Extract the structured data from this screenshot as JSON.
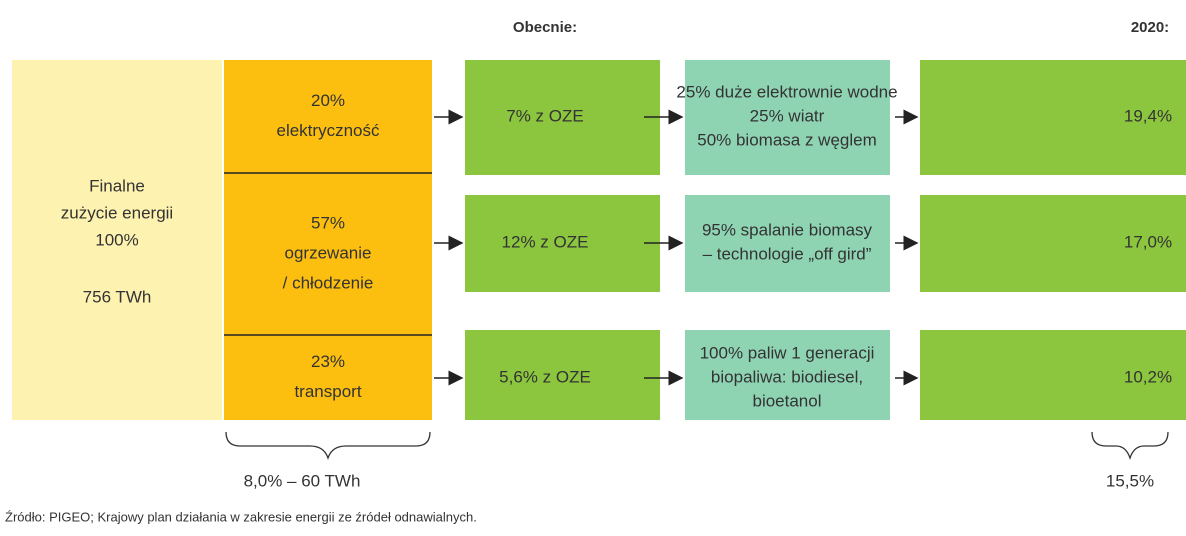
{
  "header": {
    "current": "Obecnie:",
    "target": "2020:"
  },
  "total": {
    "lines": [
      "Finalne",
      "zużycie energii",
      "100%"
    ],
    "amount": "756 TWh"
  },
  "rows": [
    {
      "share": "20%",
      "sector": [
        "elektryczność"
      ],
      "current": "7% z OZE",
      "sources": [
        "25% duże elektrownie wodne",
        "25% wiatr",
        "50% biomasa z węglem"
      ],
      "target": "19,4%"
    },
    {
      "share": "57%",
      "sector": [
        "ogrzewanie",
        "/ chłodzenie"
      ],
      "current": "12% z OZE",
      "sources": [
        "95% spalanie biomasy",
        "– technologie „off gird”"
      ],
      "target": "17,0%"
    },
    {
      "share": "23%",
      "sector": [
        "transport"
      ],
      "current": "5,6% z OZE",
      "sources": [
        "100% paliw 1 generacji",
        "biopaliwa: biodiesel,",
        "bioetanol"
      ],
      "target": "10,2%"
    }
  ],
  "brace_left": "8,0% – 60 TWh",
  "brace_right": "15,5%",
  "source": "Źródło: PIGEO; Krajowy plan działania w zakresie energii ze źródeł odnawialnych."
}
